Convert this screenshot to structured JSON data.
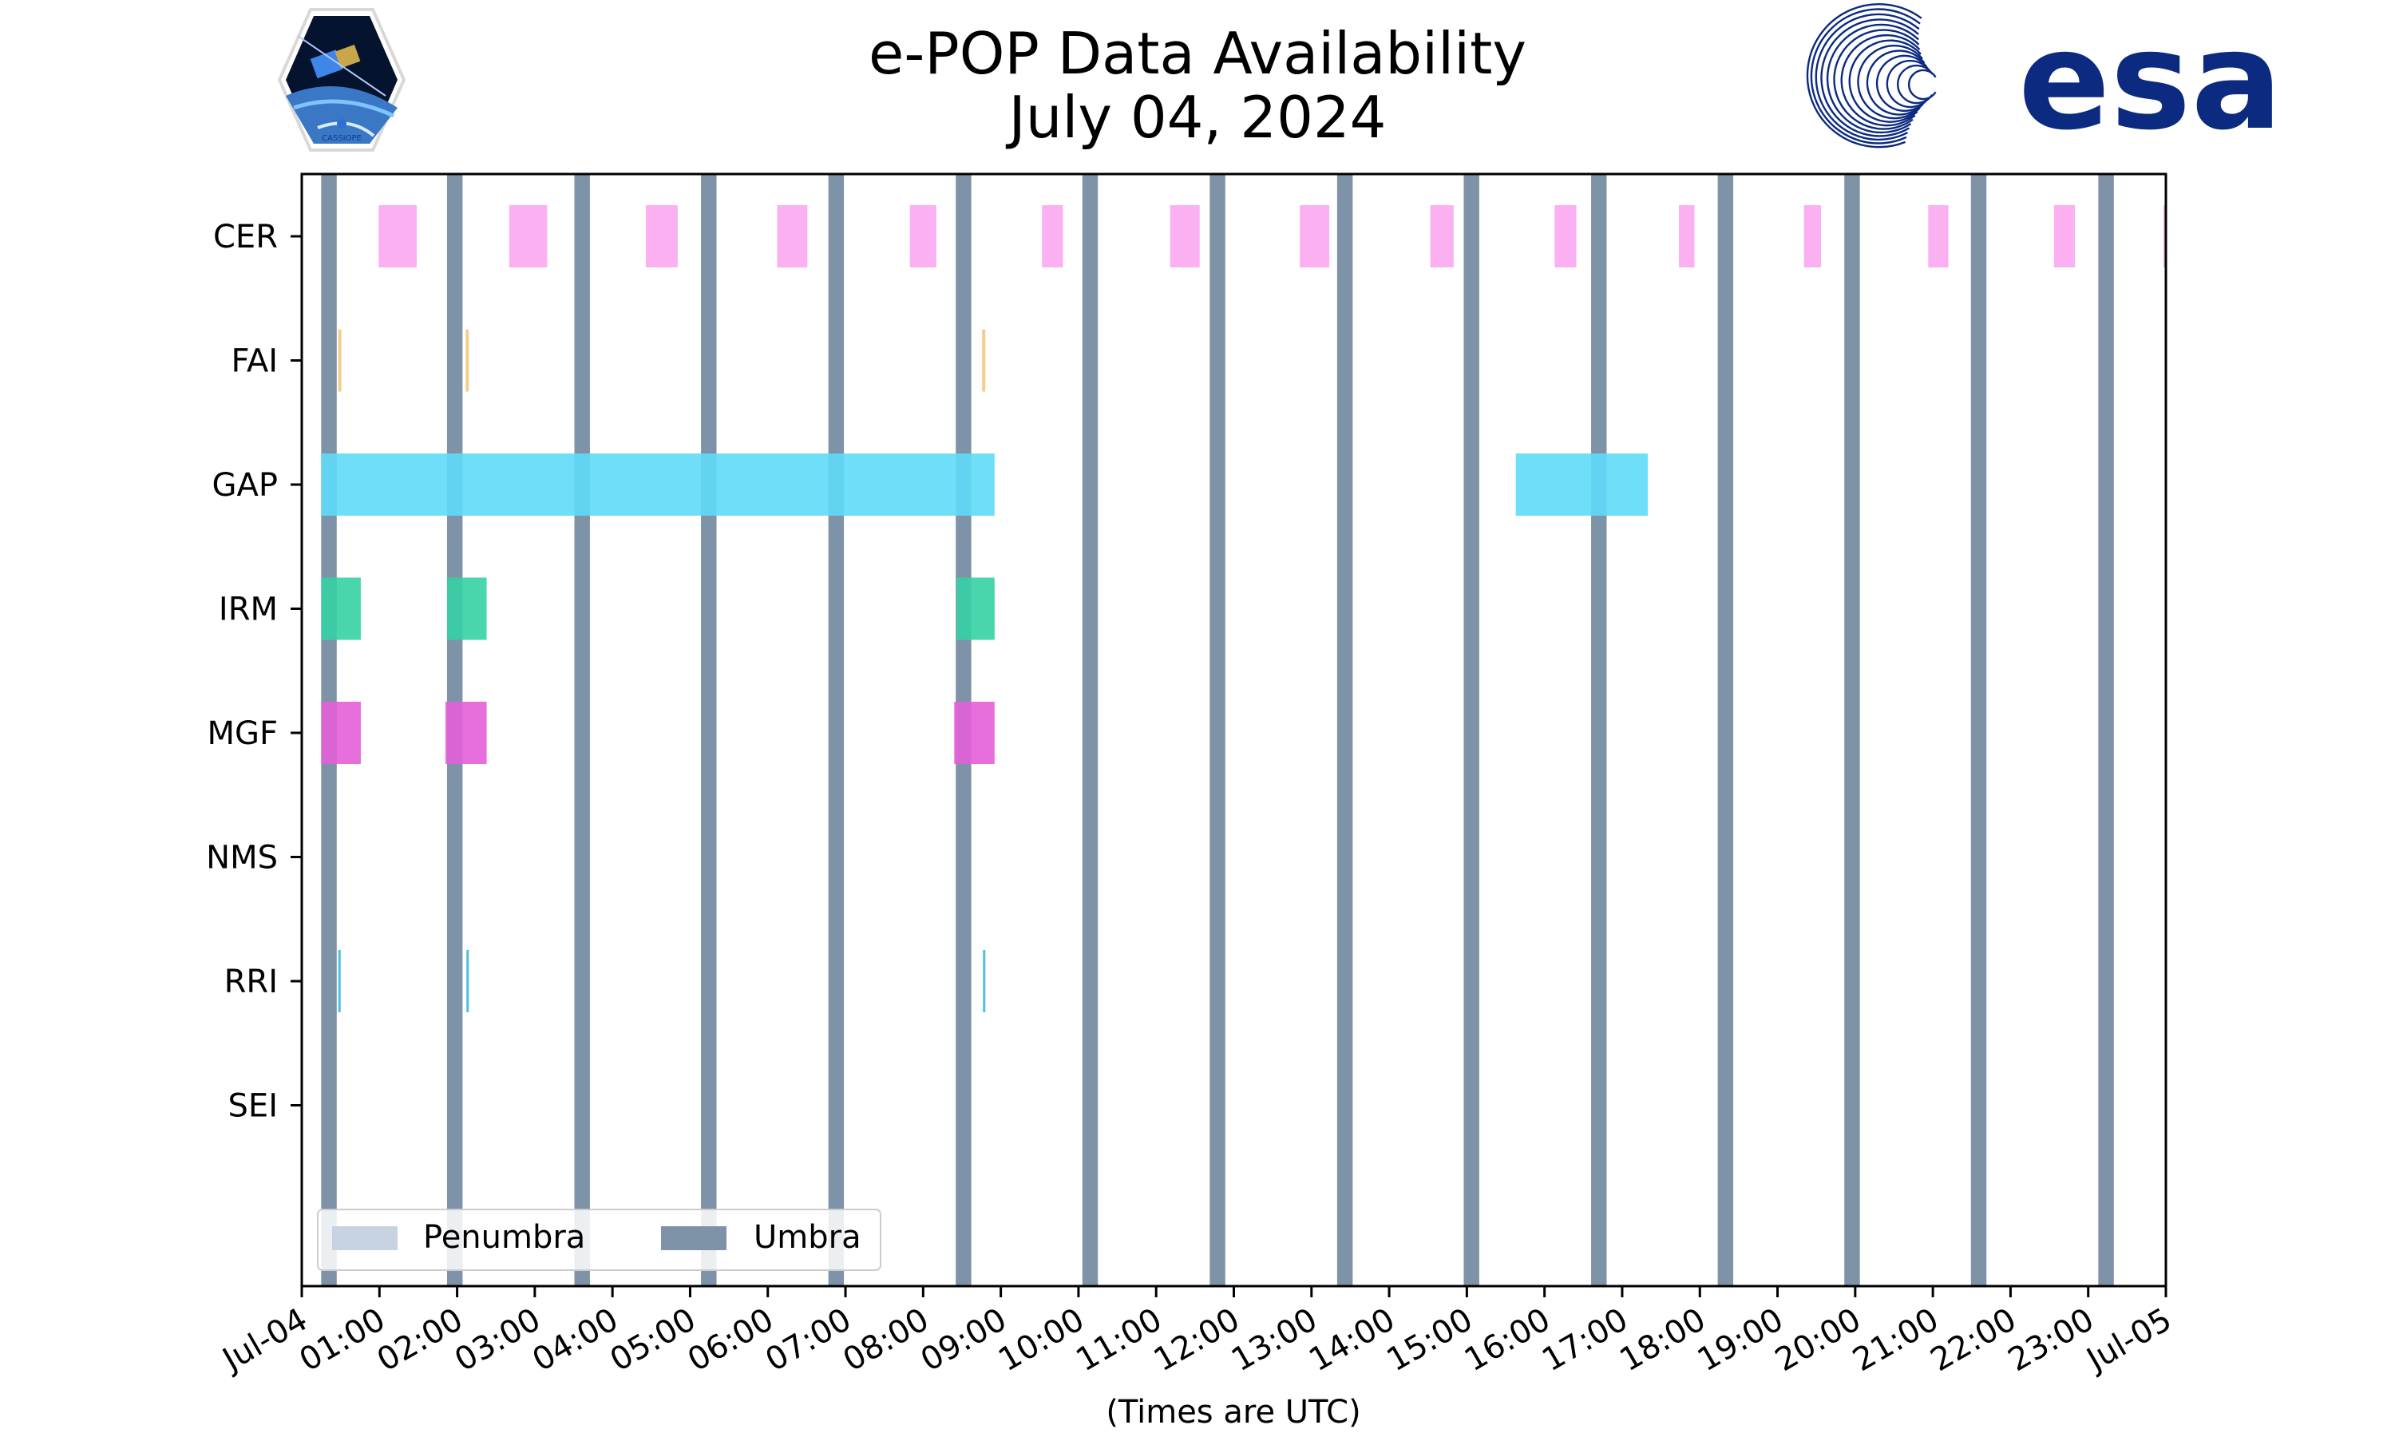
{
  "chart_data": {
    "type": "timeline",
    "title": "e-POP Data Availability",
    "subtitle": "July 04, 2024",
    "xlabel": "(Times are UTC)",
    "x_range_hours": [
      0,
      24
    ],
    "x_tick_labels": [
      "Jul-04",
      "01:00",
      "02:00",
      "03:00",
      "04:00",
      "05:00",
      "06:00",
      "07:00",
      "08:00",
      "09:00",
      "10:00",
      "11:00",
      "12:00",
      "13:00",
      "14:00",
      "15:00",
      "16:00",
      "17:00",
      "18:00",
      "19:00",
      "20:00",
      "21:00",
      "22:00",
      "23:00",
      "Jul-05"
    ],
    "instruments": [
      "CER",
      "FAI",
      "GAP",
      "IRM",
      "MGF",
      "NMS",
      "RRI",
      "SEI"
    ],
    "colors": {
      "CER": "#fba8f0",
      "FAI": "#f6c77c",
      "GAP": "#5fdaf7",
      "IRM": "#35d1a4",
      "MGF": "#e35fd8",
      "RRI": "#3bb8dc",
      "umbra": "#7f93a8",
      "penumbra": "#c8d3e2"
    },
    "segments": {
      "CER": [
        [
          0.99,
          1.48
        ],
        [
          2.67,
          3.16
        ],
        [
          4.43,
          4.84
        ],
        [
          6.12,
          6.51
        ],
        [
          7.83,
          8.17
        ],
        [
          9.53,
          9.8
        ],
        [
          11.18,
          11.56
        ],
        [
          12.85,
          13.23
        ],
        [
          14.53,
          14.83
        ],
        [
          16.13,
          16.41
        ],
        [
          17.73,
          17.93
        ],
        [
          19.34,
          19.56
        ],
        [
          20.94,
          21.2
        ],
        [
          22.56,
          22.83
        ],
        [
          24.0,
          24.0
        ]
      ],
      "FAI": [
        [
          0.47,
          0.51
        ],
        [
          2.11,
          2.15
        ],
        [
          8.76,
          8.8
        ]
      ],
      "GAP": [
        [
          0.25,
          8.92
        ],
        [
          15.63,
          17.33
        ]
      ],
      "IRM": [
        [
          0.25,
          0.76
        ],
        [
          1.87,
          2.38
        ],
        [
          8.43,
          8.92
        ]
      ],
      "MGF": [
        [
          0.25,
          0.76
        ],
        [
          1.85,
          2.38
        ],
        [
          8.4,
          8.92
        ]
      ],
      "NMS": [],
      "RRI": [
        [
          0.47,
          0.5
        ],
        [
          2.12,
          2.14
        ],
        [
          8.77,
          8.8
        ]
      ],
      "SEI": []
    },
    "umbra": [
      [
        0.25,
        0.45
      ],
      [
        1.87,
        2.07
      ],
      [
        3.51,
        3.71
      ],
      [
        5.14,
        5.34
      ],
      [
        6.78,
        6.98
      ],
      [
        8.42,
        8.62
      ],
      [
        10.05,
        10.25
      ],
      [
        11.69,
        11.89
      ],
      [
        13.33,
        13.53
      ],
      [
        14.96,
        15.16
      ],
      [
        16.6,
        16.8
      ],
      [
        18.23,
        18.43
      ],
      [
        19.86,
        20.06
      ],
      [
        21.49,
        21.69
      ],
      [
        23.13,
        23.33
      ]
    ],
    "penumbra": [],
    "legend": {
      "position": "lower-left",
      "entries": [
        "Penumbra",
        "Umbra"
      ]
    }
  },
  "logos": {
    "left_caption": "CASSIOPE",
    "right_wordmark": "esa"
  }
}
